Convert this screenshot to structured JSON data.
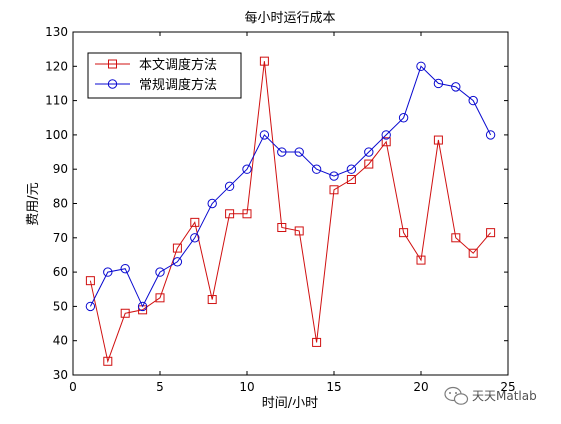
{
  "chart_data": {
    "type": "line",
    "title": "每小时运行成本",
    "xlabel": "时间/小时",
    "ylabel": "费用/元",
    "xlim": [
      0,
      25
    ],
    "ylim": [
      30,
      130
    ],
    "xticks": [
      0,
      5,
      10,
      15,
      20,
      25
    ],
    "yticks": [
      30,
      40,
      50,
      60,
      70,
      80,
      90,
      100,
      110,
      120,
      130
    ],
    "grid": false,
    "legend_position": "top-left",
    "x": [
      1,
      2,
      3,
      4,
      5,
      6,
      7,
      8,
      9,
      10,
      11,
      12,
      13,
      14,
      15,
      16,
      17,
      18,
      19,
      20,
      21,
      22,
      23,
      24
    ],
    "series": [
      {
        "name": "本文调度方法",
        "color": "#d01010",
        "marker": "square",
        "values": [
          57.5,
          34,
          48,
          49,
          52.5,
          67,
          74.5,
          52,
          77,
          77,
          121.5,
          73,
          72,
          39.5,
          84,
          87,
          91.5,
          98,
          71.5,
          63.5,
          98.5,
          70,
          65.5,
          71.5
        ]
      },
      {
        "name": "常规调度方法",
        "color": "#0a0ad0",
        "marker": "circle",
        "values": [
          50,
          60,
          61,
          50,
          60,
          63,
          70,
          80,
          85,
          90,
          100,
          95,
          95,
          90,
          88,
          90,
          95,
          100,
          105,
          120,
          115,
          114,
          110,
          100
        ]
      }
    ]
  },
  "watermark": {
    "text": "天天Matlab",
    "icon": "wechat-icon"
  }
}
